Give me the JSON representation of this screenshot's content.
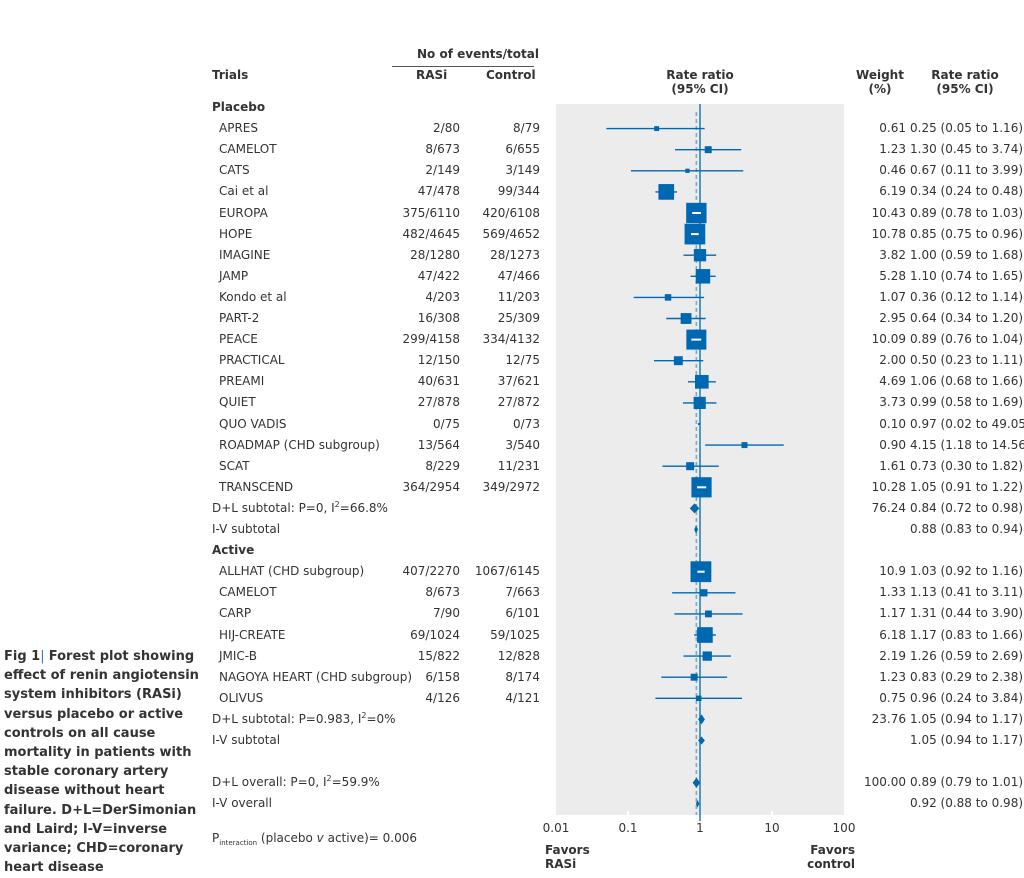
{
  "caption": {
    "label": "Fig 1",
    "separator": "|",
    "text": "Forest plot showing effect of renin angiotensin system inhibitors (RASi) versus placebo or active controls on all cause mortality in patients with stable coronary artery disease without heart failure. D+L=DerSimonian and Laird; I-V=inverse variance; CHD=coronary heart disease"
  },
  "headers": {
    "trials": "Trials",
    "events_group": "No of events/total",
    "rasi": "RASi",
    "control": "Control",
    "plot_line1": "Rate ratio",
    "plot_line2": "(95% CI)",
    "weight_line1": "Weight",
    "weight_line2": "(%)",
    "rr_line1": "Rate ratio",
    "rr_line2": "(95% CI)"
  },
  "footer": {
    "p_interaction_main": "P",
    "p_interaction_sub": "interaction",
    "p_interaction_text": " (placebo ",
    "p_interaction_v": "v",
    "p_interaction_tail": " active)= 0.006",
    "favors_left_1": "Favors",
    "favors_left_2": "RASi",
    "favors_right_1": "Favors",
    "favors_right_2": "control"
  },
  "colors": {
    "marker": "#0068b1",
    "panel": "#ececec",
    "dashed": "#7aaad6",
    "text": "#333333"
  },
  "chart_data": {
    "type": "forest",
    "title": "Forest plot: RASi vs placebo or active controls, all cause mortality",
    "xlabel": "Rate ratio (95% CI)",
    "xscale": "log",
    "xlim": [
      0.01,
      100
    ],
    "xticks": [
      0.01,
      0.1,
      1,
      10,
      100
    ],
    "xtick_labels": [
      "0.01",
      "0.1",
      "1",
      "10",
      "100"
    ],
    "reference_line": 1,
    "overall_dashed_line": 0.89,
    "rows": [
      {
        "kind": "group",
        "label": "Placebo"
      },
      {
        "kind": "study",
        "label": "APRES",
        "rasi": "2/80",
        "control": "8/79",
        "rr": 0.25,
        "lo": 0.05,
        "hi": 1.16,
        "weight": 0.61,
        "weight_text": "0.61",
        "ci_text": "0.25 (0.05 to 1.16)"
      },
      {
        "kind": "study",
        "label": "CAMELOT",
        "rasi": "8/673",
        "control": "6/655",
        "rr": 1.3,
        "lo": 0.45,
        "hi": 3.74,
        "weight": 1.23,
        "weight_text": "1.23",
        "ci_text": "1.30 (0.45 to 3.74)"
      },
      {
        "kind": "study",
        "label": "CATS",
        "rasi": "2/149",
        "control": "3/149",
        "rr": 0.67,
        "lo": 0.11,
        "hi": 3.99,
        "weight": 0.46,
        "weight_text": "0.46",
        "ci_text": "0.67 (0.11 to 3.99)"
      },
      {
        "kind": "study",
        "label": "Cai et al",
        "rasi": "47/478",
        "control": "99/344",
        "rr": 0.34,
        "lo": 0.24,
        "hi": 0.48,
        "weight": 6.19,
        "weight_text": "6.19",
        "ci_text": "0.34 (0.24 to 0.48)"
      },
      {
        "kind": "study",
        "label": "EUROPA",
        "rasi": "375/6110",
        "control": "420/6108",
        "rr": 0.89,
        "lo": 0.78,
        "hi": 1.03,
        "weight": 10.43,
        "weight_text": "10.43",
        "ci_text": "0.89 (0.78 to 1.03)"
      },
      {
        "kind": "study",
        "label": "HOPE",
        "rasi": "482/4645",
        "control": "569/4652",
        "rr": 0.85,
        "lo": 0.75,
        "hi": 0.96,
        "weight": 10.78,
        "weight_text": "10.78",
        "ci_text": "0.85 (0.75 to 0.96)"
      },
      {
        "kind": "study",
        "label": "IMAGINE",
        "rasi": "28/1280",
        "control": "28/1273",
        "rr": 1.0,
        "lo": 0.59,
        "hi": 1.68,
        "weight": 3.82,
        "weight_text": "3.82",
        "ci_text": "1.00 (0.59 to 1.68)"
      },
      {
        "kind": "study",
        "label": "JAMP",
        "rasi": "47/422",
        "control": "47/466",
        "rr": 1.1,
        "lo": 0.74,
        "hi": 1.65,
        "weight": 5.28,
        "weight_text": "5.28",
        "ci_text": "1.10 (0.74 to 1.65)"
      },
      {
        "kind": "study",
        "label": "Kondo et al",
        "rasi": "4/203",
        "control": "11/203",
        "rr": 0.36,
        "lo": 0.12,
        "hi": 1.14,
        "weight": 1.07,
        "weight_text": "1.07",
        "ci_text": "0.36 (0.12 to 1.14)"
      },
      {
        "kind": "study",
        "label": "PART-2",
        "rasi": "16/308",
        "control": "25/309",
        "rr": 0.64,
        "lo": 0.34,
        "hi": 1.2,
        "weight": 2.95,
        "weight_text": "2.95",
        "ci_text": "0.64 (0.34 to 1.20)"
      },
      {
        "kind": "study",
        "label": "PEACE",
        "rasi": "299/4158",
        "control": "334/4132",
        "rr": 0.89,
        "lo": 0.76,
        "hi": 1.04,
        "weight": 10.09,
        "weight_text": "10.09",
        "ci_text": "0.89 (0.76 to 1.04)"
      },
      {
        "kind": "study",
        "label": "PRACTICAL",
        "rasi": "12/150",
        "control": "12/75",
        "rr": 0.5,
        "lo": 0.23,
        "hi": 1.11,
        "weight": 2.0,
        "weight_text": "2.00",
        "ci_text": "0.50 (0.23 to 1.11)"
      },
      {
        "kind": "study",
        "label": "PREAMI",
        "rasi": "40/631",
        "control": "37/621",
        "rr": 1.06,
        "lo": 0.68,
        "hi": 1.66,
        "weight": 4.69,
        "weight_text": "4.69",
        "ci_text": "1.06 (0.68 to 1.66)"
      },
      {
        "kind": "study",
        "label": "QUIET",
        "rasi": "27/878",
        "control": "27/872",
        "rr": 0.99,
        "lo": 0.58,
        "hi": 1.69,
        "weight": 3.73,
        "weight_text": "3.73",
        "ci_text": "0.99 (0.58 to 1.69)"
      },
      {
        "kind": "study",
        "label": "QUO VADIS",
        "rasi": "0/75",
        "control": "0/73",
        "rr": 0.97,
        "lo": 0.02,
        "hi": 49.05,
        "weight": 0.1,
        "weight_text": "0.10",
        "ci_text": "0.97 (0.02 to 49.05)",
        "no_ci_line": true
      },
      {
        "kind": "study",
        "label": "ROADMAP (CHD subgroup)",
        "rasi": "13/564",
        "control": "3/540",
        "rr": 4.15,
        "lo": 1.18,
        "hi": 14.56,
        "weight": 0.9,
        "weight_text": "0.90",
        "ci_text": "4.15 (1.18 to 14.56)"
      },
      {
        "kind": "study",
        "label": "SCAT",
        "rasi": "8/229",
        "control": "11/231",
        "rr": 0.73,
        "lo": 0.3,
        "hi": 1.82,
        "weight": 1.61,
        "weight_text": "1.61",
        "ci_text": "0.73 (0.30 to 1.82)"
      },
      {
        "kind": "study",
        "label": "TRANSCEND",
        "rasi": "364/2954",
        "control": "349/2972",
        "rr": 1.05,
        "lo": 0.91,
        "hi": 1.22,
        "weight": 10.28,
        "weight_text": "10.28",
        "ci_text": "1.05 (0.91 to 1.22)"
      },
      {
        "kind": "summary",
        "label": "D+L subtotal: P=0, I",
        "label_sup": "2",
        "label_tail": "=66.8%",
        "rr": 0.84,
        "lo": 0.72,
        "hi": 0.98,
        "weight": 76.24,
        "weight_text": "76.24",
        "ci_text": "0.84 (0.72 to 0.98)"
      },
      {
        "kind": "summary",
        "label": "I-V subtotal",
        "rr": 0.88,
        "lo": 0.83,
        "hi": 0.94,
        "weight_text": "",
        "ci_text": "0.88 (0.83 to 0.94)"
      },
      {
        "kind": "group",
        "label": "Active"
      },
      {
        "kind": "study",
        "label": "ALLHAT (CHD subgroup)",
        "rasi": "407/2270",
        "control": "1067/6145",
        "rr": 1.03,
        "lo": 0.92,
        "hi": 1.16,
        "weight": 10.9,
        "weight_text": "10.9",
        "ci_text": "1.03 (0.92 to 1.16)"
      },
      {
        "kind": "study",
        "label": "CAMELOT",
        "rasi": "8/673",
        "control": "7/663",
        "rr": 1.13,
        "lo": 0.41,
        "hi": 3.11,
        "weight": 1.33,
        "weight_text": "1.33",
        "ci_text": "1.13 (0.41 to 3.11)"
      },
      {
        "kind": "study",
        "label": "CARP",
        "rasi": "7/90",
        "control": "6/101",
        "rr": 1.31,
        "lo": 0.44,
        "hi": 3.9,
        "weight": 1.17,
        "weight_text": "1.17",
        "ci_text": "1.31 (0.44 to 3.90)"
      },
      {
        "kind": "study",
        "label": "HIJ-CREATE",
        "rasi": "69/1024",
        "control": "59/1025",
        "rr": 1.17,
        "lo": 0.83,
        "hi": 1.66,
        "weight": 6.18,
        "weight_text": "6.18",
        "ci_text": "1.17 (0.83 to 1.66)"
      },
      {
        "kind": "study",
        "label": "JMIC-B",
        "rasi": "15/822",
        "control": "12/828",
        "rr": 1.26,
        "lo": 0.59,
        "hi": 2.69,
        "weight": 2.19,
        "weight_text": "2.19",
        "ci_text": "1.26 (0.59 to 2.69)"
      },
      {
        "kind": "study",
        "label": "NAGOYA HEART (CHD subgroup)",
        "rasi": "6/158",
        "control": "8/174",
        "rr": 0.83,
        "lo": 0.29,
        "hi": 2.38,
        "weight": 1.23,
        "weight_text": "1.23",
        "ci_text": "0.83 (0.29 to 2.38)"
      },
      {
        "kind": "study",
        "label": "OLIVUS",
        "rasi": "4/126",
        "control": "4/121",
        "rr": 0.96,
        "lo": 0.24,
        "hi": 3.84,
        "weight": 0.75,
        "weight_text": "0.75",
        "ci_text": "0.96 (0.24 to 3.84)"
      },
      {
        "kind": "summary",
        "label": "D+L subtotal: P=0.983, I",
        "label_sup": "2",
        "label_tail": "=0%",
        "rr": 1.05,
        "lo": 0.94,
        "hi": 1.17,
        "weight": 23.76,
        "weight_text": "23.76",
        "ci_text": "1.05 (0.94 to 1.17)"
      },
      {
        "kind": "summary",
        "label": "I-V subtotal",
        "rr": 1.05,
        "lo": 0.94,
        "hi": 1.17,
        "weight_text": "",
        "ci_text": "1.05 (0.94 to 1.17)"
      },
      {
        "kind": "blank"
      },
      {
        "kind": "summary",
        "label": "D+L overall: P=0, I",
        "label_sup": "2",
        "label_tail": "=59.9%",
        "rr": 0.89,
        "lo": 0.79,
        "hi": 1.01,
        "weight": 100.0,
        "weight_text": "100.00",
        "ci_text": "0.89 (0.79 to 1.01)"
      },
      {
        "kind": "summary",
        "label": "I-V overall",
        "rr": 0.92,
        "lo": 0.88,
        "hi": 0.98,
        "weight_text": "",
        "ci_text": "0.92 (0.88 to 0.98)"
      }
    ]
  }
}
